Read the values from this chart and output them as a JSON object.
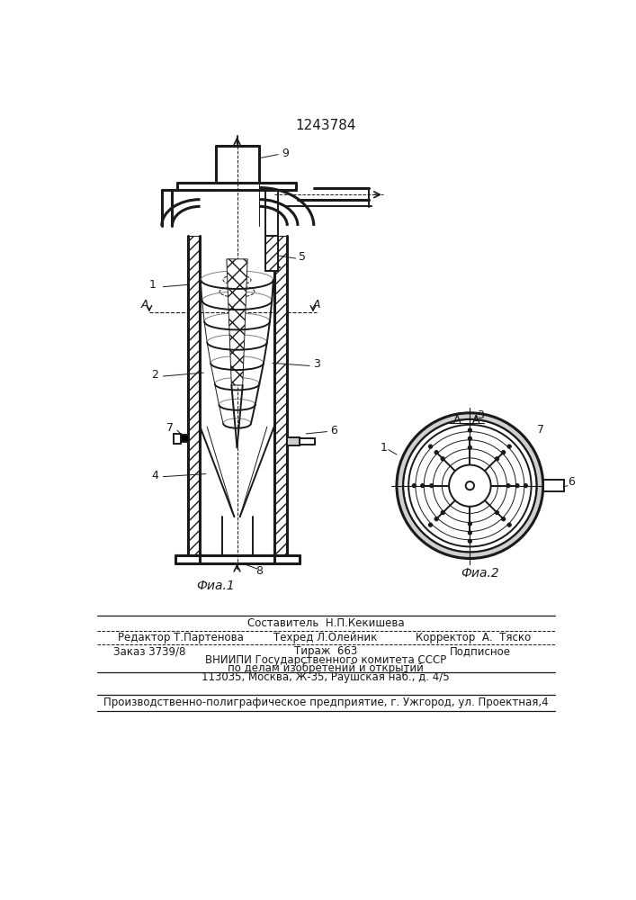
{
  "patent_number": "1243784",
  "fig1_caption": "Фиа.1",
  "fig2_caption": "Фиа.2",
  "fig2_label": "А - А",
  "bg_color": "#ffffff",
  "line_color": "#1a1a1a",
  "footer": {
    "line1_center": "Составитель  Н.П.Кекишева",
    "line2_left": "Редактор Т.Партенова",
    "line2_center": "Техред Л.Олейник",
    "line2_right": "Корректор  А.  Тяско",
    "line3_left": "Заказ 3739/8",
    "line3_center": "Тираж  663",
    "line3_right": "Подписное",
    "line4": "ВНИИПИ Государственного комитета СССР",
    "line5": "по делам изобретений и открытий",
    "line6": "113035, Москва, Ж-35, Раушская наб., д. 4/5",
    "line7": "Производственно-полиграфическое предприятие, г. Ужгород, ул. Проектная,4"
  }
}
